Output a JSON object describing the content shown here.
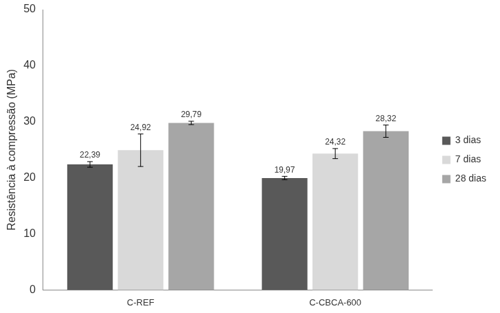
{
  "chart_data": {
    "type": "bar",
    "y_label": "Resistência à compressão (MPa)",
    "categories": [
      "C-REF",
      "C-CBCA-600"
    ],
    "series": [
      {
        "name": "3 dias",
        "color": "#595959",
        "values": [
          22.39,
          19.97
        ],
        "value_labels": [
          "22,39",
          "19,97"
        ],
        "error": [
          0.5,
          0.3
        ]
      },
      {
        "name": "7 dias",
        "color": "#d9d9d9",
        "values": [
          24.92,
          24.32
        ],
        "value_labels": [
          "24,92",
          "24,32"
        ],
        "error": [
          2.9,
          0.9
        ]
      },
      {
        "name": "28 dias",
        "color": "#a6a6a6",
        "values": [
          29.79,
          28.32
        ],
        "value_labels": [
          "29,79",
          "28,32"
        ],
        "error": [
          0.3,
          1.1
        ]
      }
    ],
    "ylim": [
      0,
      50
    ],
    "yticks": [
      0,
      10,
      20,
      30,
      40,
      50
    ],
    "grid": false,
    "legend": "right",
    "data_labels": true
  }
}
